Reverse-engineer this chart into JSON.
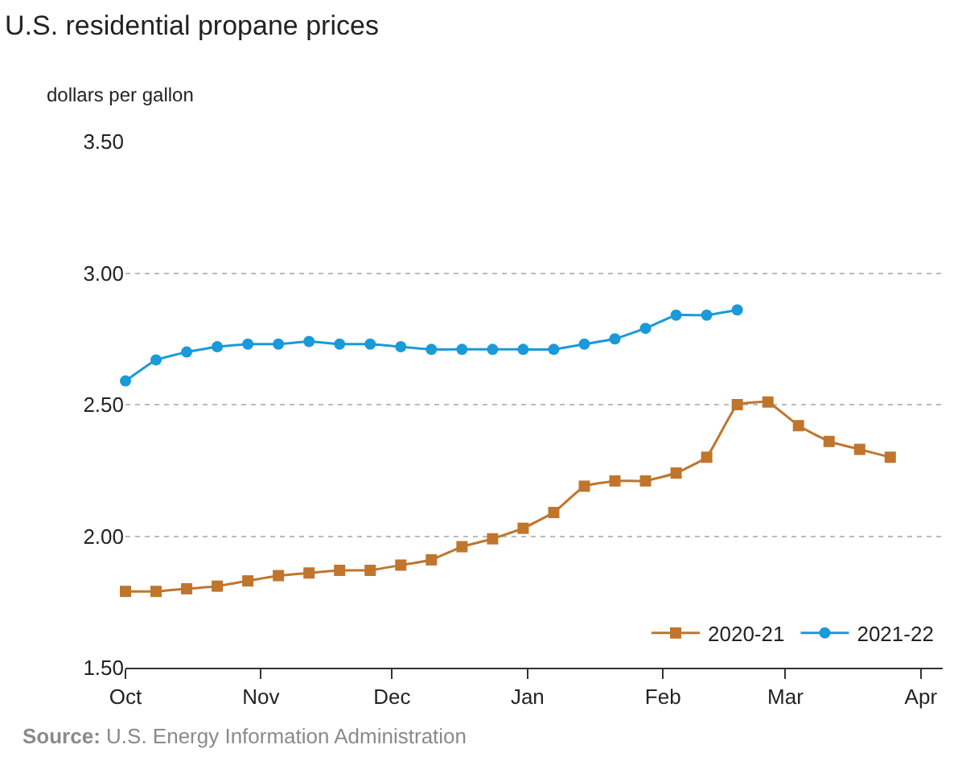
{
  "chart_data": {
    "type": "line",
    "title": "U.S. residential propane prices",
    "ylabel": "dollars per gallon",
    "x": [
      "2020-10-01",
      "2020-10-08",
      "2020-10-15",
      "2020-10-22",
      "2020-10-29",
      "2020-11-05",
      "2020-11-12",
      "2020-11-19",
      "2020-11-26",
      "2020-12-03",
      "2020-12-10",
      "2020-12-17",
      "2020-12-24",
      "2020-12-31",
      "2021-01-07",
      "2021-01-14",
      "2021-01-21",
      "2021-01-28",
      "2021-02-04",
      "2021-02-11",
      "2021-02-18",
      "2021-02-25",
      "2021-03-04",
      "2021-03-11",
      "2021-03-18",
      "2021-03-25"
    ],
    "series": [
      {
        "name": "2020-21",
        "color": "#c0752d",
        "marker": "square",
        "values": [
          1.79,
          1.79,
          1.8,
          1.81,
          1.83,
          1.85,
          1.86,
          1.87,
          1.87,
          1.89,
          1.91,
          1.96,
          1.99,
          2.03,
          2.09,
          2.19,
          2.21,
          2.21,
          2.24,
          2.3,
          2.5,
          2.51,
          2.42,
          2.36,
          2.33,
          2.3
        ]
      },
      {
        "name": "2021-22",
        "color": "#1a9ad8",
        "marker": "circle",
        "values": [
          2.59,
          2.67,
          2.7,
          2.72,
          2.73,
          2.73,
          2.74,
          2.73,
          2.73,
          2.72,
          2.71,
          2.71,
          2.71,
          2.71,
          2.71,
          2.73,
          2.75,
          2.79,
          2.84,
          2.84,
          2.86,
          null,
          null,
          null,
          null,
          null
        ]
      }
    ],
    "xlim": [
      "2020-10-01",
      "2021-04-06"
    ],
    "xticks": [
      {
        "value": "2020-10-01",
        "label": "Oct"
      },
      {
        "value": "2020-11-01",
        "label": "Nov"
      },
      {
        "value": "2020-12-01",
        "label": "Dec"
      },
      {
        "value": "2021-01-01",
        "label": "Jan"
      },
      {
        "value": "2021-02-01",
        "label": "Feb"
      },
      {
        "value": "2021-03-01",
        "label": "Mar"
      },
      {
        "value": "2021-04-01",
        "label": "Apr"
      }
    ],
    "ylim": [
      1.5,
      3.5
    ],
    "yticks": [
      {
        "value": 1.5,
        "label": "1.50"
      },
      {
        "value": 2.0,
        "label": "2.00"
      },
      {
        "value": 2.5,
        "label": "2.50"
      },
      {
        "value": 3.0,
        "label": "3.00"
      },
      {
        "value": 3.5,
        "label": "3.50"
      }
    ],
    "grid": "y",
    "legend": "bottom right",
    "line_style": "solid",
    "annotations": [
      "Source: U.S. Energy Information Administration"
    ]
  }
}
